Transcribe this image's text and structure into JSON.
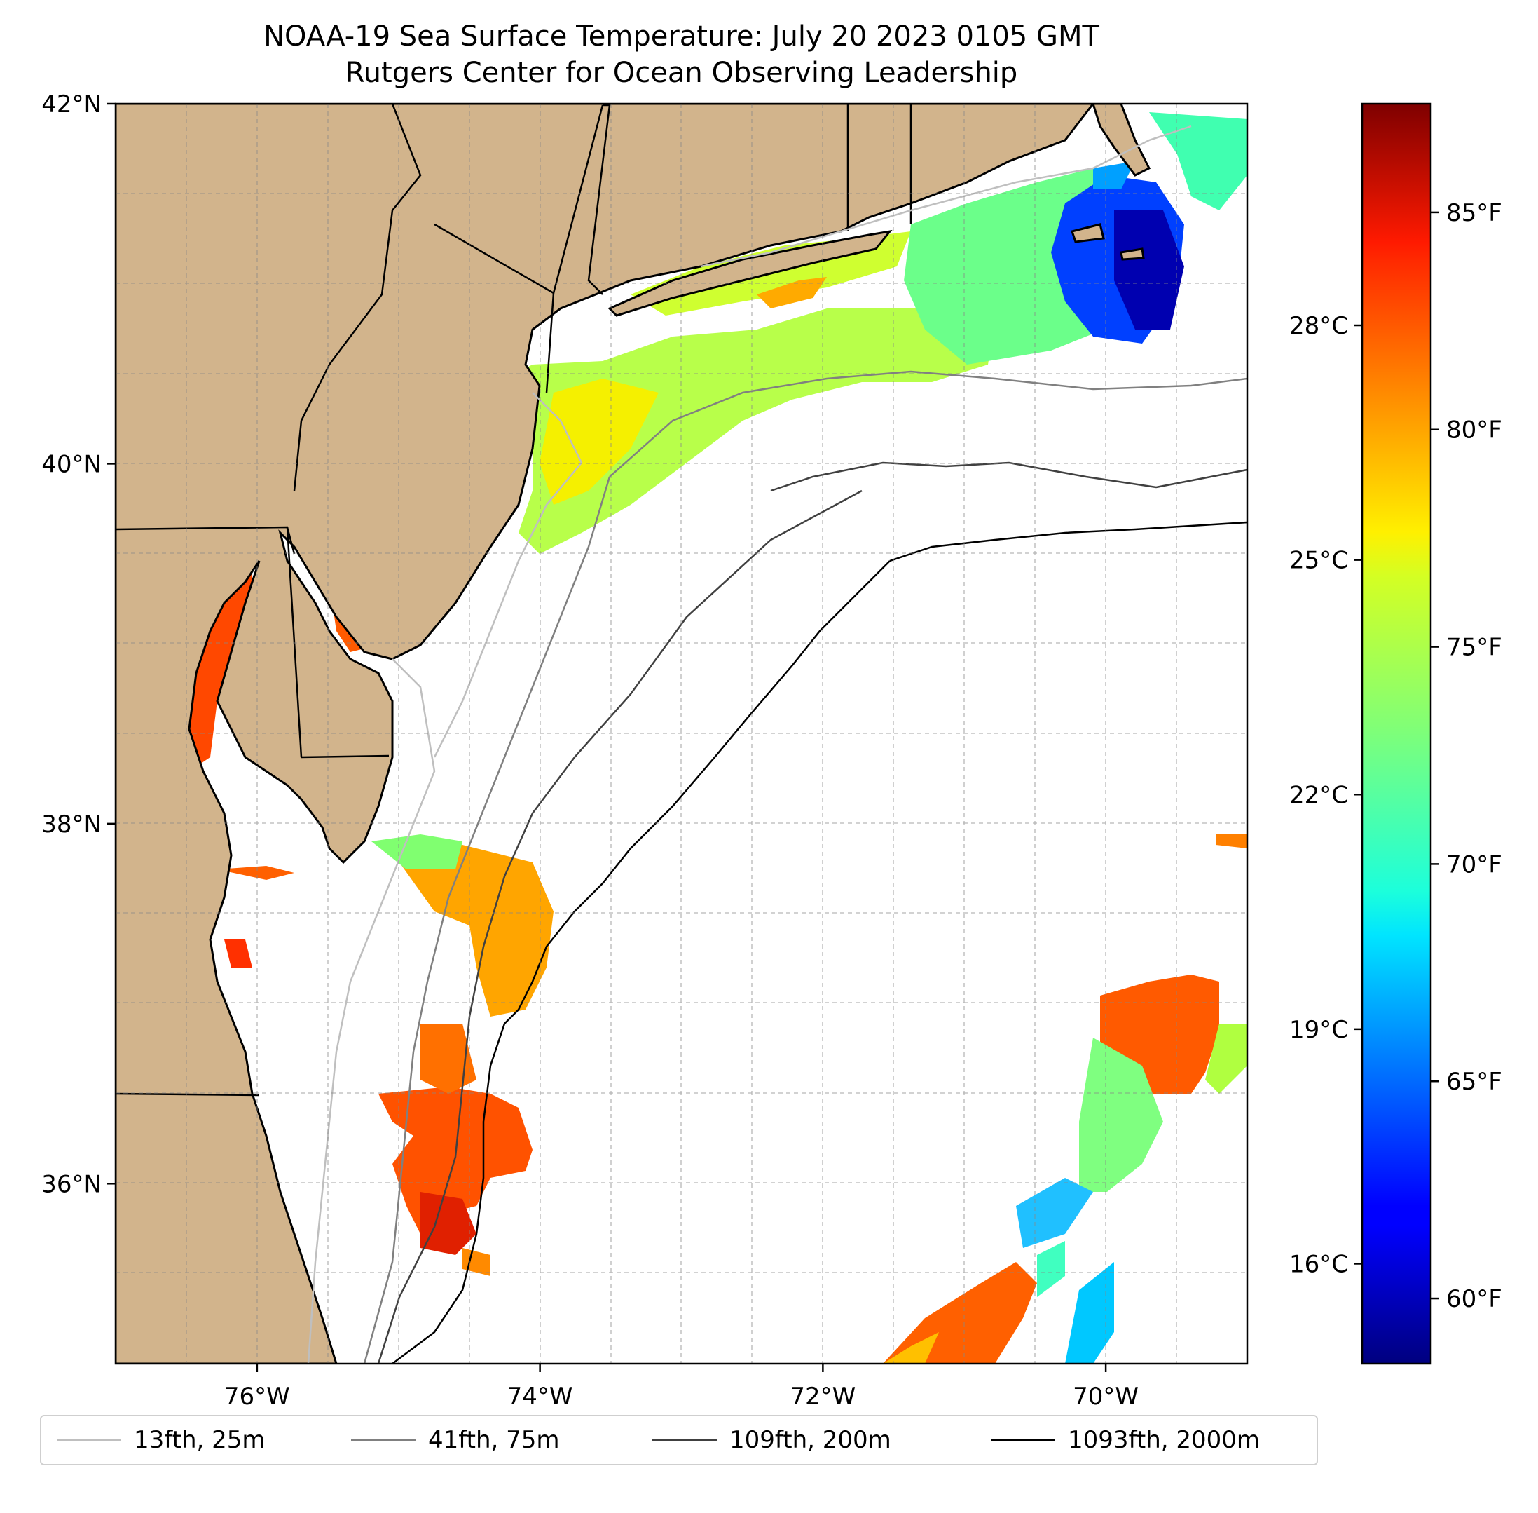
{
  "title": {
    "line1": "NOAA-19 Sea Surface Temperature: July 20 2023 0105 GMT",
    "line2": "Rutgers Center for Ocean Observing Leadership"
  },
  "map": {
    "lon_range": [
      -77.0,
      -69.0
    ],
    "lat_range": [
      35.0,
      42.0
    ],
    "x_ticks": [
      {
        "lon": -76,
        "label": "76°W"
      },
      {
        "lon": -74,
        "label": "74°W"
      },
      {
        "lon": -72,
        "label": "72°W"
      },
      {
        "lon": -70,
        "label": "70°W"
      }
    ],
    "y_ticks": [
      {
        "lat": 42,
        "label": "42°N"
      },
      {
        "lat": 40,
        "label": "40°N"
      },
      {
        "lat": 38,
        "label": "38°N"
      },
      {
        "lat": 36,
        "label": "36°N"
      }
    ],
    "land_color": "#d2b48c",
    "grid": "dashed"
  },
  "colorbar": {
    "colormap": "jet",
    "range_f": [
      58.5,
      87.5
    ],
    "celsius_ticks": [
      {
        "value_f": 82.4,
        "label": "28°C"
      },
      {
        "value_f": 77.0,
        "label": "25°C"
      },
      {
        "value_f": 71.6,
        "label": "22°C"
      },
      {
        "value_f": 66.2,
        "label": "19°C"
      },
      {
        "value_f": 60.8,
        "label": "16°C"
      }
    ],
    "fahrenheit_ticks": [
      {
        "value_f": 85,
        "label": "85°F"
      },
      {
        "value_f": 80,
        "label": "80°F"
      },
      {
        "value_f": 75,
        "label": "75°F"
      },
      {
        "value_f": 70,
        "label": "70°F"
      },
      {
        "value_f": 65,
        "label": "65°F"
      },
      {
        "value_f": 60,
        "label": "60°F"
      }
    ]
  },
  "legend": {
    "items": [
      {
        "label": "13fth, 25m",
        "color": "#bfbfbf"
      },
      {
        "label": "41fth, 75m",
        "color": "#808080"
      },
      {
        "label": "109fth, 200m",
        "color": "#404040"
      },
      {
        "label": "1093fth, 2000m",
        "color": "#000000"
      }
    ]
  }
}
